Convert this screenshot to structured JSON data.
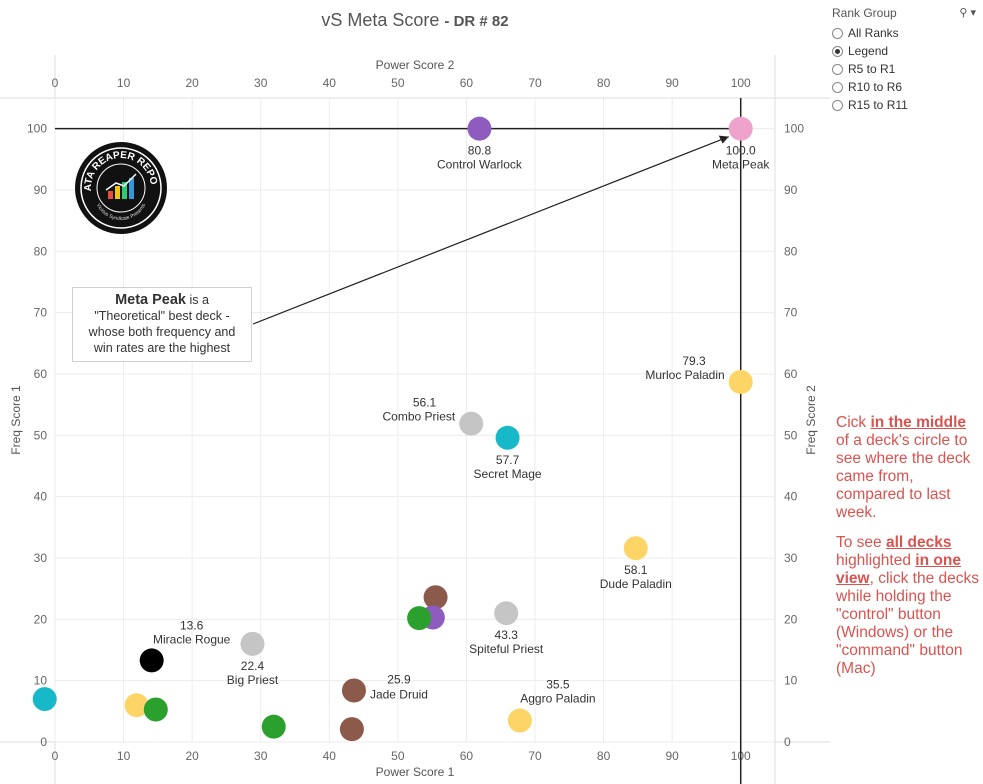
{
  "title": "vS Meta Score",
  "subtitle": "- DR # 82",
  "filter": {
    "title": "Rank Group",
    "options": [
      "All Ranks",
      "Legend",
      "R5 to R1",
      "R10 to R6",
      "R15 to R11"
    ],
    "selected": "Legend"
  },
  "callout": {
    "bold": "Meta Peak",
    "line1_rest": " is a",
    "line2": "\"Theoretical\" best deck -",
    "line3": "whose both frequency and",
    "line4": "win rates are the highest"
  },
  "logo_text": "DATA REAPER REPORT",
  "logo_subtext": "Vicious Syndicate Presents",
  "instructions": {
    "p1_a": "Cick ",
    "p1_b": "in the middle",
    "p1_c": " of a deck's circle to see where the deck came from, compared to last week.",
    "p2_a": "To see ",
    "p2_b": "all decks ",
    "p2_c": "highlighted ",
    "p2_d": "in one view",
    "p2_e": ", click the decks while holding the \"control\" button (Windows) or the \"command\" button (Mac)"
  },
  "chart_data": {
    "type": "scatter",
    "xlabel": "Power Score 1",
    "xlabel_top": "Power Score 2",
    "ylabel": "Freq Score 1",
    "ylabel_right": "Freq Score 2",
    "xlim": [
      0,
      105
    ],
    "ylim": [
      0,
      105
    ],
    "xticks": [
      0,
      10,
      20,
      30,
      40,
      50,
      60,
      70,
      80,
      90,
      100
    ],
    "yticks": [
      0,
      10,
      20,
      30,
      40,
      50,
      60,
      70,
      80,
      90,
      100
    ],
    "reference_lines": {
      "x": 100,
      "y": 100
    },
    "grid": true,
    "points": [
      {
        "x": 61.9,
        "y": 100,
        "color": "#8e5bbf",
        "score": "80.8",
        "label": "Control Warlock"
      },
      {
        "x": 100,
        "y": 100,
        "color": "#efa2cc",
        "score": "100.0",
        "label": "Meta Peak"
      },
      {
        "x": 100,
        "y": 58.7,
        "color": "#fdd466",
        "score": "79.3",
        "label": "Murloc Paladin"
      },
      {
        "x": 60.7,
        "y": 51.9,
        "color": "#c5c5c5",
        "score": "56.1",
        "label": "Combo Priest"
      },
      {
        "x": 66.0,
        "y": 49.6,
        "color": "#17b8c8",
        "score": "57.7",
        "label": "Secret Mage"
      },
      {
        "x": 84.7,
        "y": 31.6,
        "color": "#fdd466",
        "score": "58.1",
        "label": "Dude Paladin"
      },
      {
        "x": 55.5,
        "y": 23.6,
        "color": "#8b5a4b",
        "score": "",
        "label": ""
      },
      {
        "x": 55.1,
        "y": 20.3,
        "color": "#8e5bbf",
        "score": "",
        "label": ""
      },
      {
        "x": 53.1,
        "y": 20.2,
        "color": "#2ca02c",
        "score": "",
        "label": ""
      },
      {
        "x": 65.8,
        "y": 21.0,
        "color": "#c5c5c5",
        "score": "43.3",
        "label": "Spiteful Priest"
      },
      {
        "x": 14.1,
        "y": 13.3,
        "color": "#000000",
        "score": "13.6",
        "label": "Miracle Rogue"
      },
      {
        "x": 28.8,
        "y": 16.0,
        "color": "#c5c5c5",
        "score": "22.4",
        "label": "Big Priest"
      },
      {
        "x": 43.6,
        "y": 8.4,
        "color": "#8b5a4b",
        "score": "25.9",
        "label": "Jade Druid"
      },
      {
        "x": 67.8,
        "y": 3.5,
        "color": "#fdd466",
        "score": "35.5",
        "label": "Aggro Paladin"
      },
      {
        "x": -1.5,
        "y": 7.0,
        "color": "#17b8c8",
        "score": "",
        "label": ""
      },
      {
        "x": 11.9,
        "y": 6.0,
        "color": "#fdd466",
        "score": "",
        "label": ""
      },
      {
        "x": 14.7,
        "y": 5.3,
        "color": "#2ca02c",
        "score": "",
        "label": ""
      },
      {
        "x": 31.9,
        "y": 2.5,
        "color": "#2ca02c",
        "score": "",
        "label": ""
      },
      {
        "x": 43.3,
        "y": 2.1,
        "color": "#8b5a4b",
        "score": "",
        "label": ""
      }
    ]
  }
}
